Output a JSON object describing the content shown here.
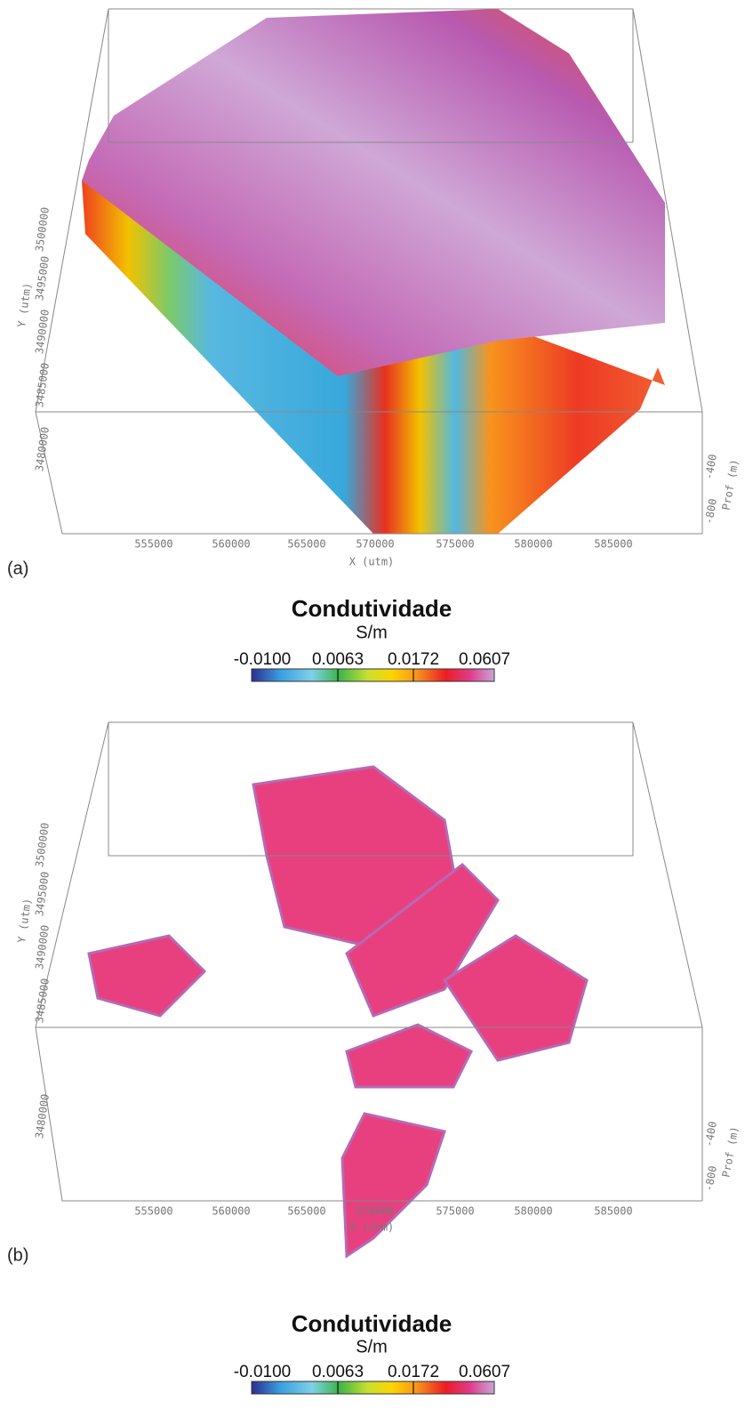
{
  "panels": [
    {
      "label": "(a)",
      "x_axis_label": "X (utm)",
      "y_axis_label": "Y (utm)",
      "z_axis_label": "Prof (m)",
      "x_ticks": [
        "555000",
        "560000",
        "565000",
        "570000",
        "575000",
        "580000",
        "585000"
      ],
      "y_ticks": [
        "3480000",
        "3485000",
        "3490000",
        "3495000",
        "3500000"
      ],
      "z_ticks": [
        "-400",
        "-800"
      ],
      "colorbar": {
        "title": "Condutividade",
        "unit": "S/m",
        "ticks": [
          "-0.0100",
          "0.0063",
          "0.0172",
          "0.0607"
        ]
      }
    },
    {
      "label": "(b)",
      "x_axis_label": "X (utm)",
      "y_axis_label": "Y (utm)",
      "z_axis_label": "Prof (m)",
      "x_ticks": [
        "555000",
        "560000",
        "565000",
        "570000",
        "575000",
        "580000",
        "585000"
      ],
      "y_ticks": [
        "3480000",
        "3485000",
        "3490000",
        "3495000",
        "3500000"
      ],
      "z_ticks": [
        "-400",
        "-800"
      ],
      "colorbar": {
        "title": "Condutividade",
        "unit": "S/m",
        "ticks": [
          "-0.0100",
          "0.0063",
          "0.0172",
          "0.0607"
        ]
      }
    }
  ]
}
